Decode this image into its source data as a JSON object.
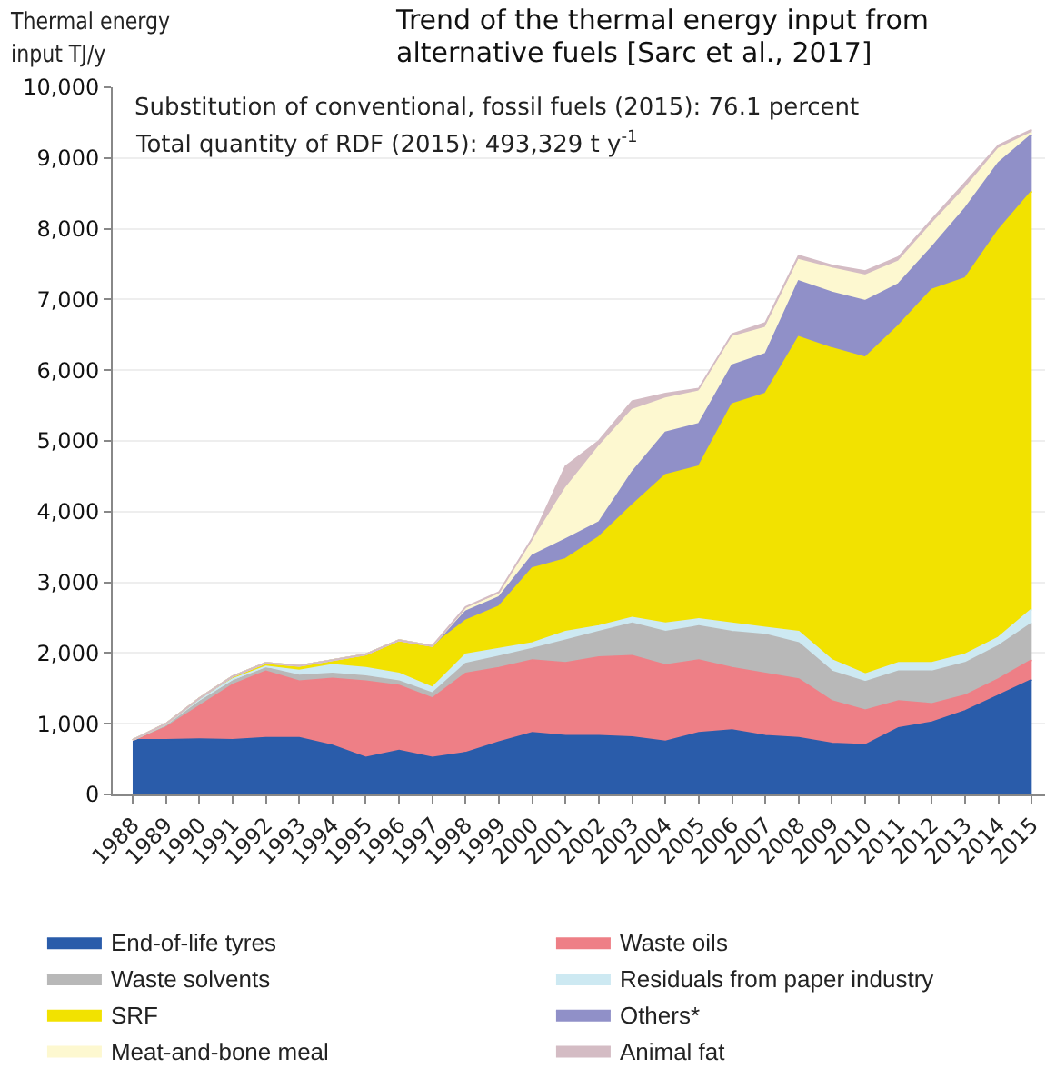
{
  "chart_data": {
    "type": "area",
    "stacked": true,
    "title": "Trend of the thermal energy input from alternative fuels [Sarc et al., 2017]",
    "ylabel": "Thermal energy input TJ/y",
    "annotations": [
      "Substitution of conventional, fossil fuels (2015): 76.1 percent",
      "Total quantity of RDF (2015): 493,329 t y$^{-1}$"
    ],
    "categories": [
      "1988",
      "1989",
      "1990",
      "1991",
      "1992",
      "1993",
      "1994",
      "1995",
      "1996",
      "1997",
      "1998",
      "1999",
      "2000",
      "2001",
      "2002",
      "2003",
      "2004",
      "2005",
      "2006",
      "2007",
      "2008",
      "2009",
      "2010",
      "2011",
      "2012",
      "2013",
      "2014",
      "2015"
    ],
    "series": [
      {
        "name": "End-of-life tyres",
        "color": "#2a5caa",
        "values": [
          770,
          770,
          780,
          770,
          800,
          800,
          690,
          520,
          620,
          520,
          590,
          740,
          870,
          830,
          830,
          810,
          750,
          870,
          910,
          830,
          800,
          720,
          700,
          940,
          1020,
          1180,
          1400,
          1620
        ]
      },
      {
        "name": "Waste oils",
        "color": "#ee7f86",
        "values": [
          0,
          180,
          470,
          780,
          940,
          800,
          950,
          1080,
          920,
          840,
          1120,
          1050,
          1030,
          1030,
          1110,
          1150,
          1080,
          1030,
          880,
          880,
          830,
          600,
          490,
          380,
          260,
          220,
          230,
          280
        ]
      },
      {
        "name": "Waste solvents",
        "color": "#b8b8b8",
        "values": [
          0,
          30,
          60,
          50,
          50,
          80,
          70,
          70,
          60,
          70,
          140,
          160,
          160,
          320,
          360,
          460,
          470,
          480,
          510,
          550,
          510,
          420,
          400,
          420,
          460,
          460,
          470,
          520
        ]
      },
      {
        "name": "Residuals from paper industry",
        "color": "#cde9f2",
        "values": [
          0,
          10,
          30,
          30,
          20,
          70,
          120,
          120,
          110,
          80,
          130,
          110,
          80,
          120,
          80,
          80,
          120,
          100,
          120,
          100,
          160,
          160,
          110,
          120,
          120,
          120,
          120,
          200
        ]
      },
      {
        "name": "SRF",
        "color": "#f2e200",
        "values": [
          0,
          10,
          20,
          40,
          50,
          70,
          70,
          190,
          470,
          590,
          480,
          600,
          1060,
          1030,
          1260,
          1590,
          2100,
          2160,
          3100,
          3310,
          4170,
          4410,
          4480,
          4770,
          5280,
          5320,
          5760,
          5910
        ]
      },
      {
        "name": "Others*",
        "color": "#9090c8",
        "values": [
          0,
          0,
          0,
          0,
          0,
          0,
          0,
          0,
          0,
          0,
          130,
          130,
          180,
          280,
          210,
          470,
          600,
          600,
          550,
          560,
          790,
          790,
          800,
          590,
          600,
          990,
          950,
          800
        ]
      },
      {
        "name": "Meat-and-bone meal",
        "color": "#fdf8d0",
        "values": [
          0,
          0,
          0,
          0,
          0,
          0,
          0,
          0,
          0,
          0,
          40,
          40,
          200,
          720,
          1070,
          880,
          480,
          460,
          400,
          370,
          300,
          340,
          360,
          320,
          330,
          280,
          200,
          30
        ]
      },
      {
        "name": "Animal fat",
        "color": "#d4bcc4",
        "values": [
          0,
          0,
          0,
          0,
          0,
          0,
          0,
          0,
          0,
          0,
          20,
          30,
          40,
          310,
          80,
          120,
          70,
          40,
          40,
          70,
          60,
          40,
          60,
          60,
          60,
          80,
          50,
          40
        ]
      }
    ],
    "ylim": [
      0,
      10000
    ],
    "yticks": [
      0,
      {
        "value": 1000,
        "label": "1,000"
      },
      {
        "value": 2000,
        "label": "2,000"
      },
      {
        "value": 3000,
        "label": "3,000"
      },
      {
        "value": 4000,
        "label": "4,000"
      },
      {
        "value": 5000,
        "label": "5,000"
      },
      {
        "value": 6000,
        "label": "6,000"
      },
      {
        "value": 7000,
        "label": "7,000"
      },
      {
        "value": 8000,
        "label": "8,000"
      },
      {
        "value": 9000,
        "label": "9,000"
      },
      {
        "value": 10000,
        "label": "10,000"
      }
    ],
    "grid": "y",
    "legend": "bottom"
  }
}
